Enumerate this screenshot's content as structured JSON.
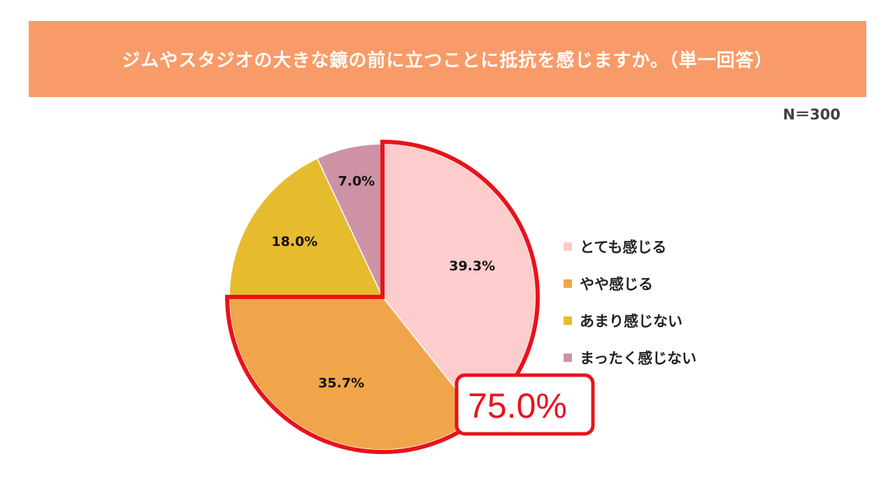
{
  "header": {
    "title": "ジムやスタジオの大きな鏡の前に立つことに抵抗を感じますか。（単一回答）",
    "sample_size": "N＝300"
  },
  "callout": {
    "text": "75.0%",
    "color": "#e8131b"
  },
  "colors": {
    "title_band": "#f99b68"
  },
  "chart_data": {
    "type": "pie",
    "title": "ジムやスタジオの大きな鏡の前に立つことに抵抗を感じますか。（単一回答）",
    "start": "12 o'clock, clockwise",
    "slices": [
      {
        "label": "とても感じる",
        "value": 39.3,
        "display": "39.3%",
        "color": "#fdcccc"
      },
      {
        "label": "やや感じる",
        "value": 35.7,
        "display": "35.7%",
        "color": "#f0a54a"
      },
      {
        "label": "あまり感じない",
        "value": 18.0,
        "display": "18.0%",
        "color": "#e6bb2e"
      },
      {
        "label": "まったく感じない",
        "value": 7.0,
        "display": "7.0%",
        "color": "#cd92a6"
      }
    ],
    "highlighted_total": {
      "value": 75.0,
      "display": "75.0%",
      "slices": [
        "とても感じる",
        "やや感じる"
      ]
    },
    "legend": {
      "position": "right"
    }
  }
}
